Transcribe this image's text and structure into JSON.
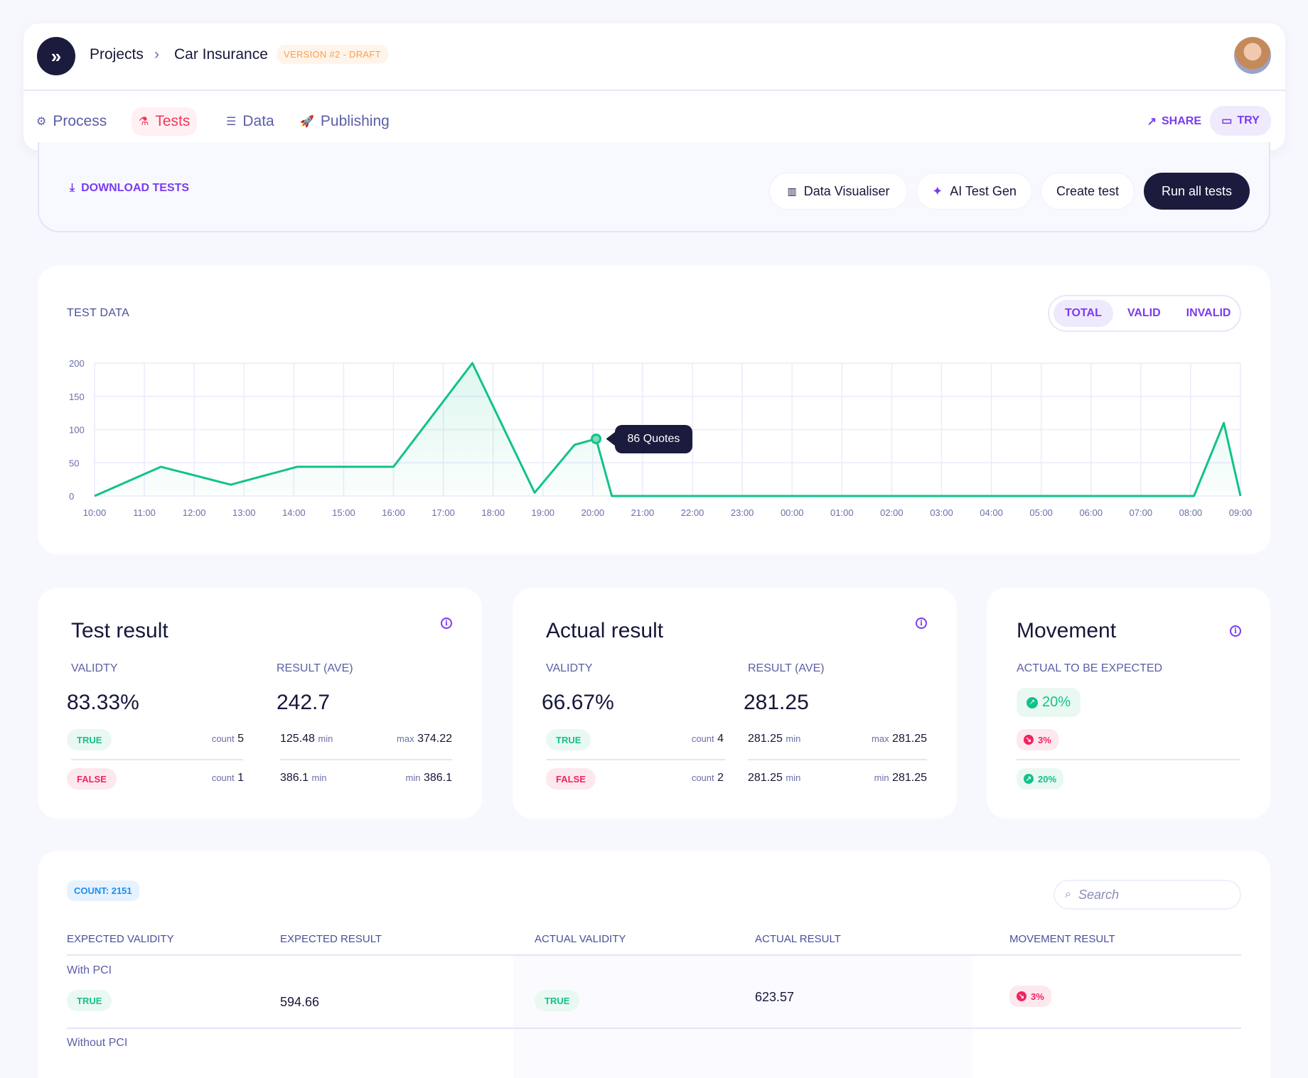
{
  "header": {
    "breadcrumb": [
      "Projects",
      "Car Insurance"
    ],
    "version_badge": "VERSION #2 - DRAFT",
    "tabs": [
      {
        "label": "Process",
        "icon": "gear-icon"
      },
      {
        "label": "Tests",
        "icon": "flask-icon",
        "active": true
      },
      {
        "label": "Data",
        "icon": "database-icon"
      },
      {
        "label": "Publishing",
        "icon": "rocket-icon"
      }
    ],
    "share_label": "SHARE",
    "try_label": "TRY"
  },
  "toolbar": {
    "download_label": "DOWNLOAD TESTS",
    "data_visualiser_label": "Data Visualiser",
    "ai_test_gen_label": "AI Test Gen",
    "create_test_label": "Create test",
    "run_all_label": "Run all tests"
  },
  "chart_section": {
    "title": "TEST DATA",
    "filters": [
      "TOTAL",
      "VALID",
      "INVALID"
    ],
    "active_filter": "TOTAL",
    "tooltip": "86 Quotes"
  },
  "chart_data": {
    "type": "area",
    "title": "TEST DATA",
    "x_ticks": [
      "10:00",
      "11:00",
      "12:00",
      "13:00",
      "14:00",
      "15:00",
      "16:00",
      "17:00",
      "18:00",
      "19:00",
      "20:00",
      "21:00",
      "22:00",
      "23:00",
      "00:00",
      "01:00",
      "02:00",
      "03:00",
      "04:00",
      "05:00",
      "06:00",
      "07:00",
      "08:00",
      "09:00"
    ],
    "y_ticks": [
      0,
      50,
      100,
      150,
      200
    ],
    "ylim": [
      0,
      200
    ],
    "grid": true,
    "color": "#12c28a",
    "points": [
      {
        "x": "10:00",
        "y": 0
      },
      {
        "x": "11:20",
        "y": 44
      },
      {
        "x": "12:44",
        "y": 17
      },
      {
        "x": "14:04",
        "y": 44
      },
      {
        "x": "16:00",
        "y": 44
      },
      {
        "x": "17:35",
        "y": 200
      },
      {
        "x": "18:50",
        "y": 5
      },
      {
        "x": "19:38",
        "y": 77
      },
      {
        "x": "20:04",
        "y": 86
      },
      {
        "x": "20:23",
        "y": 0
      },
      {
        "x": "08:04",
        "y": 0
      },
      {
        "x": "08:40",
        "y": 110
      },
      {
        "x": "09:00",
        "y": 0
      }
    ],
    "highlighted_point": {
      "x": "20:04",
      "y": 86,
      "label": "86 Quotes"
    }
  },
  "cards": {
    "test_result": {
      "title": "Test result",
      "validity_label": "VALIDTY",
      "result_label": "RESULT (AVE)",
      "validity": "83.33%",
      "result": "242.7",
      "rows": [
        {
          "badge": "TRUE",
          "count_label": "count",
          "count": "5",
          "left_value": "125.48",
          "left_unit": "min",
          "right_unit": "max",
          "right_value": "374.22"
        },
        {
          "badge": "FALSE",
          "count_label": "count",
          "count": "1",
          "left_value": "386.1",
          "left_unit": "min",
          "right_unit": "min",
          "right_value": "386.1"
        }
      ]
    },
    "actual_result": {
      "title": "Actual result",
      "validity_label": "VALIDTY",
      "result_label": "RESULT (AVE)",
      "validity": "66.67%",
      "result": "281.25",
      "rows": [
        {
          "badge": "TRUE",
          "count_label": "count",
          "count": "4",
          "left_value": "281.25",
          "left_unit": "min",
          "right_unit": "max",
          "right_value": "281.25"
        },
        {
          "badge": "FALSE",
          "count_label": "count",
          "count": "2",
          "left_value": "281.25",
          "left_unit": "min",
          "right_unit": "min",
          "right_value": "281.25"
        }
      ]
    },
    "movement": {
      "title": "Movement",
      "label": "ACTUAL TO BE EXPECTED",
      "main": "20%",
      "rows": [
        "3%",
        "20%"
      ]
    }
  },
  "table": {
    "count_badge": "COUNT: 2151",
    "search_placeholder": "Search",
    "columns": [
      "EXPECTED VALIDITY",
      "EXPECTED RESULT",
      "ACTUAL VALIDITY",
      "ACTUAL RESULT",
      "MOVEMENT RESULT"
    ],
    "rows": [
      {
        "group": "With PCI",
        "expected_validity": "TRUE",
        "expected_result": "594.66",
        "actual_validity": "TRUE",
        "actual_result": "623.57",
        "movement": "3%"
      },
      {
        "group": "Without PCI"
      }
    ]
  },
  "colors": {
    "accent": "#7a3cf0",
    "navy": "#1a1b3d",
    "green": "#12c28a",
    "red": "#f0245f",
    "active_tab": "#f2385a",
    "version_badge": "#f7a14a"
  }
}
